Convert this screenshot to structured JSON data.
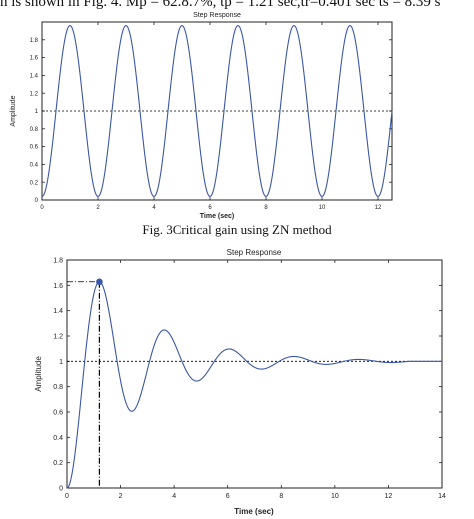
{
  "header_text": "n is shown in Fig.  4. Mp = 62.8.7%, tp = 1.21 sec,tr=0.401 sec ts =  8.39 s",
  "caption": "Fig. 3Critical gain using ZN method",
  "chart_data": [
    {
      "type": "line",
      "title": "Step Response",
      "xlabel": "Time (sec)",
      "ylabel": "Amplitude",
      "xlim": [
        0,
        12.5
      ],
      "ylim": [
        0,
        2
      ],
      "xticks": [
        0,
        2,
        4,
        6,
        8,
        10,
        12
      ],
      "yticks": [
        0,
        0.2,
        0.4,
        0.6,
        0.8,
        1,
        1.2,
        1.4,
        1.6,
        1.8
      ],
      "reference_line": 1,
      "series": [
        {
          "model": "sustained_oscillation",
          "mean": 1,
          "amplitude": 0.96,
          "period_sec": 2.0,
          "peak_time_sec": 1.0
        }
      ],
      "grid": false
    },
    {
      "type": "line",
      "title": "Step Response",
      "xlabel": "Time (sec)",
      "ylabel": "Amplitude",
      "xlim": [
        0,
        14
      ],
      "ylim": [
        0,
        1.8
      ],
      "xticks": [
        0,
        2,
        4,
        6,
        8,
        10,
        12,
        14
      ],
      "yticks": [
        0,
        0.2,
        0.4,
        0.6,
        0.8,
        1,
        1.2,
        1.4,
        1.6,
        1.8
      ],
      "reference_line": 1,
      "series": [
        {
          "model": "damped_second_order",
          "final_value": 1,
          "overshoot": 0.628,
          "peak_time_sec": 1.21,
          "settle_end_sec": 12.7
        }
      ],
      "peak_marker": {
        "x": 1.21,
        "y": 1.628
      },
      "grid": false
    }
  ]
}
